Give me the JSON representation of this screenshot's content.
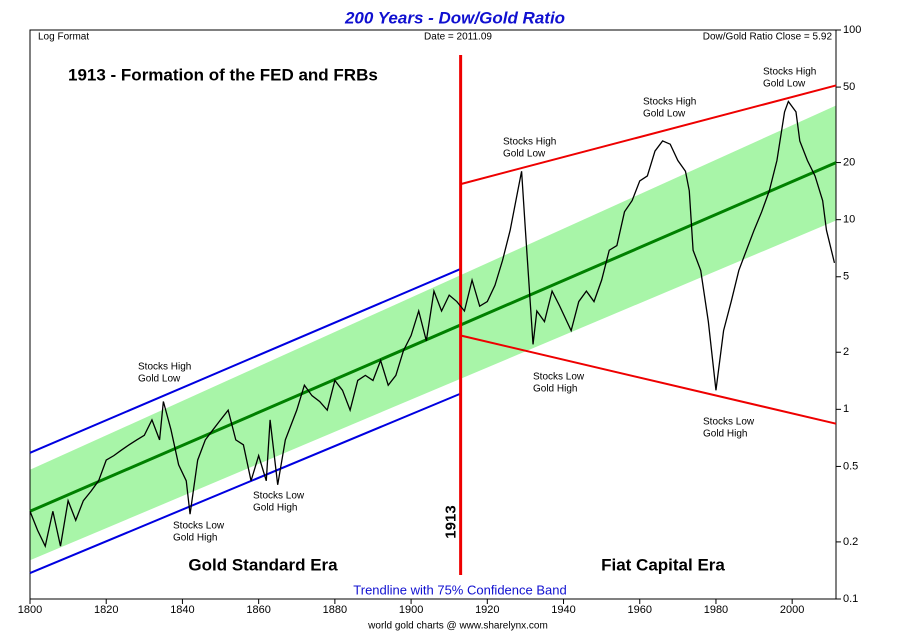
{
  "chart_data": {
    "type": "line",
    "title": "200 Years - Dow/Gold Ratio",
    "log_scale": true,
    "xlim": [
      1800,
      2011.5
    ],
    "xticks": [
      1800,
      1820,
      1840,
      1860,
      1880,
      1900,
      1920,
      1940,
      1960,
      1980,
      2000
    ],
    "ylim": [
      0.1,
      100
    ],
    "yticks": [
      100,
      50,
      20,
      10,
      5,
      2,
      1,
      0.5,
      0.2,
      0.1
    ],
    "series": [
      {
        "color": "#000000",
        "x": [
          1800,
          1802,
          1804,
          1806,
          1808,
          1810,
          1812,
          1814,
          1816,
          1818,
          1820,
          1822,
          1824,
          1826,
          1828,
          1830,
          1832,
          1834,
          1835,
          1837,
          1839,
          1841,
          1842,
          1844,
          1846,
          1848,
          1850,
          1852,
          1854,
          1856,
          1858,
          1860,
          1862,
          1863,
          1865,
          1867,
          1870,
          1872,
          1874,
          1876,
          1878,
          1880,
          1882,
          1884,
          1886,
          1888,
          1890,
          1892,
          1894,
          1896,
          1898,
          1900,
          1902,
          1904,
          1906,
          1908,
          1910,
          1912,
          1914,
          1916,
          1918,
          1920,
          1922,
          1924,
          1926,
          1928,
          1929,
          1930,
          1932,
          1933,
          1935,
          1937,
          1939,
          1942,
          1944,
          1946,
          1948,
          1950,
          1952,
          1954,
          1956,
          1958,
          1960,
          1962,
          1964,
          1966,
          1968,
          1970,
          1972,
          1973,
          1974,
          1976,
          1978,
          1980,
          1982,
          1984,
          1986,
          1988,
          1990,
          1992,
          1994,
          1996,
          1998,
          1999,
          2001,
          2002,
          2004,
          2006,
          2008,
          2009,
          2011.09
        ],
        "values": [
          0.29,
          0.23,
          0.19,
          0.29,
          0.19,
          0.33,
          0.26,
          0.33,
          0.37,
          0.42,
          0.54,
          0.57,
          0.61,
          0.65,
          0.69,
          0.73,
          0.88,
          0.69,
          1.1,
          0.78,
          0.51,
          0.42,
          0.28,
          0.54,
          0.69,
          0.78,
          0.88,
          0.99,
          0.69,
          0.65,
          0.42,
          0.57,
          0.42,
          0.88,
          0.4,
          0.69,
          0.99,
          1.34,
          1.18,
          1.1,
          0.99,
          1.42,
          1.26,
          0.99,
          1.42,
          1.51,
          1.42,
          1.81,
          1.34,
          1.51,
          2.04,
          2.45,
          3.3,
          2.3,
          4.2,
          3.3,
          4.0,
          3.7,
          3.3,
          4.8,
          3.5,
          3.7,
          4.5,
          6.1,
          8.8,
          14.2,
          18,
          8.8,
          2.2,
          3.3,
          2.9,
          4.2,
          3.5,
          2.6,
          3.7,
          4.2,
          3.7,
          4.8,
          6.9,
          7.3,
          11,
          12.6,
          16,
          17,
          23,
          26,
          25,
          20.5,
          18,
          14.2,
          6.9,
          5.4,
          2.9,
          1.26,
          2.6,
          3.7,
          5.4,
          6.9,
          8.8,
          11,
          14.2,
          20.5,
          37,
          42,
          37,
          26,
          20.5,
          17,
          12.6,
          8.8,
          5.92
        ]
      }
    ],
    "band": {
      "color": "#a8f5a8",
      "x": [
        1800,
        2011.5
      ],
      "upper": [
        0.48,
        40
      ],
      "lower": [
        0.16,
        9.9
      ]
    },
    "lines": [
      {
        "color": "#008000",
        "x": [
          1800,
          2011.5
        ],
        "values": [
          0.29,
          20
        ]
      },
      {
        "color": "#0000e0",
        "x": [
          1800,
          1913
        ],
        "values": [
          0.59,
          5.5
        ]
      },
      {
        "color": "#0000e0",
        "x": [
          1800,
          1913
        ],
        "values": [
          0.137,
          1.21
        ]
      },
      {
        "color": "#ee0000",
        "x": [
          1913,
          2011.5
        ],
        "values": [
          15.4,
          51
        ]
      },
      {
        "color": "#ee0000",
        "x": [
          1913,
          2011.5
        ],
        "values": [
          2.45,
          0.84
        ]
      }
    ],
    "vline": {
      "x": 1913,
      "label": "1913",
      "color": "#ee0000"
    },
    "annotations": [
      "Log Format",
      "Date = 2011.09",
      "Dow/Gold Ratio Close = 5.92",
      "1913 - Formation of the FED and FRBs",
      "Stocks High",
      "Gold Low",
      "Stocks Low",
      "Gold High",
      "Stocks Low",
      "Gold High",
      "Stocks High",
      "Gold Low",
      "Stocks Low",
      "Gold High",
      "Stocks High",
      "Gold Low",
      "Stocks Low",
      "Gold High",
      "Stocks High",
      "Gold Low",
      "Gold Standard Era",
      "Fiat Capital Era",
      "Trendline with 75% Confidence Band",
      "world gold charts @ www.sharelynx.com"
    ]
  }
}
